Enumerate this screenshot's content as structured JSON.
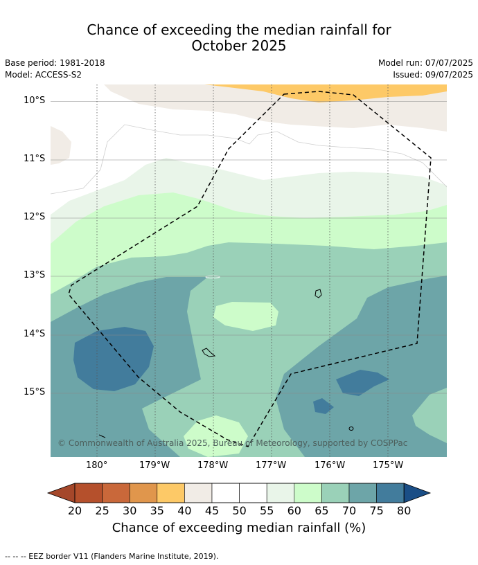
{
  "title_line1": "Chance of exceeding the median rainfall for",
  "title_line2": "October 2025",
  "base_period": "Base period: 1981-2018",
  "model": "Model: ACCESS-S2",
  "model_run": "Model run: 07/07/2025",
  "issued": "Issued: 09/07/2025",
  "lat_ticks": [
    "10°S",
    "11°S",
    "12°S",
    "13°S",
    "14°S",
    "15°S"
  ],
  "lon_ticks": [
    "180°",
    "179°W",
    "178°W",
    "177°W",
    "176°W",
    "175°W"
  ],
  "copyright": "© Commonwealth of Australia 2025, Bureau of Meteorology, supported by COSPPac",
  "colorbar": {
    "labels": [
      "20",
      "25",
      "30",
      "35",
      "40",
      "45",
      "50",
      "55",
      "60",
      "65",
      "70",
      "75",
      "80"
    ],
    "colors": [
      "#a5472a",
      "#b5502c",
      "#c9683a",
      "#e0964c",
      "#fdc967",
      "#f1ece6",
      "#ffffff",
      "#ffffff",
      "#e9f5e9",
      "#cdfcca",
      "#9ad1b8",
      "#6da5a8",
      "#427c9c",
      "#1a4e86"
    ],
    "title": "Chance of exceeding median rainfall (%)"
  },
  "legend_footer": "--  --  -- EEZ border V11 (Flanders Marine Institute, 2019)."
}
